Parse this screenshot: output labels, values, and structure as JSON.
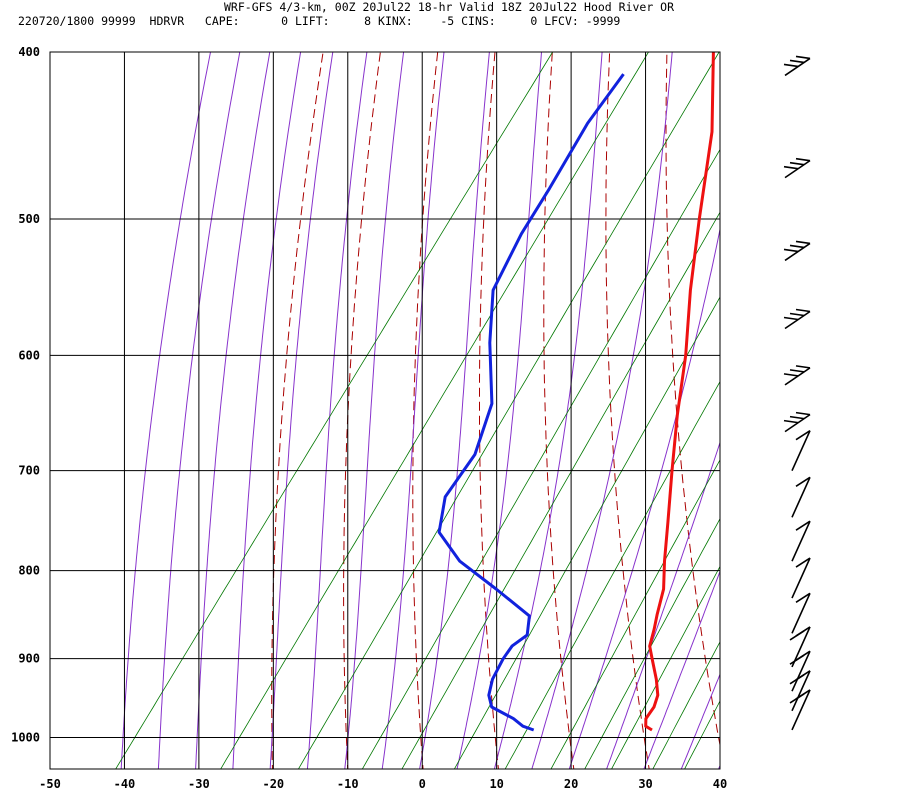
{
  "header": {
    "line1": "WRF-GFS 4/3-km, 00Z 20Jul22 18-hr Valid 18Z 20Jul22 Hood River OR",
    "line2": "220720/1800 99999  HDRVR   CAPE:      0 LIFT:     8 KINX:    -5 CINS:     0 LFCV: -9999"
  },
  "chart_data": {
    "type": "line",
    "title": "WRF-GFS 4/3-km, 00Z 20Jul22 18-hr Valid 18Z 20Jul22 Hood River OR",
    "xlim": [
      -50,
      40
    ],
    "ylim": [
      1043,
      400
    ],
    "yscale": "log",
    "grid": true,
    "x_ticks": [
      -50,
      -40,
      -30,
      -20,
      -10,
      0,
      10,
      20,
      30,
      40
    ],
    "y_ticks": [
      400,
      500,
      600,
      700,
      800,
      900,
      1000
    ],
    "colors": {
      "temperature": "#ee1111",
      "dewpoint": "#1122dd",
      "dry_adiabat": "#aa0000",
      "moist_adiabat": "#8833cc",
      "mixing_ratio": "#007700",
      "grid": "#000000"
    },
    "series": [
      {
        "key": "temperature",
        "points": [
          [
            27.2,
            990
          ],
          [
            26,
            985
          ],
          [
            25.3,
            975
          ],
          [
            25.3,
            960
          ],
          [
            24.7,
            945
          ],
          [
            23,
            925
          ],
          [
            20.5,
            900
          ],
          [
            19,
            885
          ],
          [
            18,
            865
          ],
          [
            17,
            848
          ],
          [
            15.5,
            820
          ],
          [
            13,
            790
          ],
          [
            9.8,
            750
          ],
          [
            5.5,
            700
          ],
          [
            1,
            650
          ],
          [
            -3.5,
            600
          ],
          [
            -9,
            550
          ],
          [
            -14.5,
            500
          ],
          [
            -21,
            445
          ],
          [
            -28.3,
            400
          ]
        ]
      },
      {
        "key": "dewpoint",
        "points": [
          [
            11.3,
            990
          ],
          [
            9.5,
            985
          ],
          [
            7.5,
            975
          ],
          [
            3.5,
            960
          ],
          [
            2,
            945
          ],
          [
            1,
            925
          ],
          [
            0.5,
            900
          ],
          [
            0.5,
            885
          ],
          [
            1.5,
            872
          ],
          [
            0,
            850
          ],
          [
            -7,
            820
          ],
          [
            -14.5,
            790
          ],
          [
            -20,
            760
          ],
          [
            -22.5,
            725
          ],
          [
            -22.5,
            685
          ],
          [
            -25,
            640
          ],
          [
            -31,
            590
          ],
          [
            -35.5,
            550
          ],
          [
            -37,
            510
          ],
          [
            -37.5,
            480
          ],
          [
            -38.5,
            440
          ],
          [
            -38.3,
            412
          ]
        ]
      }
    ],
    "wind_barbs": [
      {
        "p": 410
      },
      {
        "p": 470
      },
      {
        "p": 525
      },
      {
        "p": 575
      },
      {
        "p": 620
      },
      {
        "p": 660
      },
      {
        "p": 700
      },
      {
        "p": 745
      },
      {
        "p": 790
      },
      {
        "p": 830
      },
      {
        "p": 870
      },
      {
        "p": 910
      },
      {
        "p": 940
      },
      {
        "p": 965
      },
      {
        "p": 990
      }
    ]
  }
}
